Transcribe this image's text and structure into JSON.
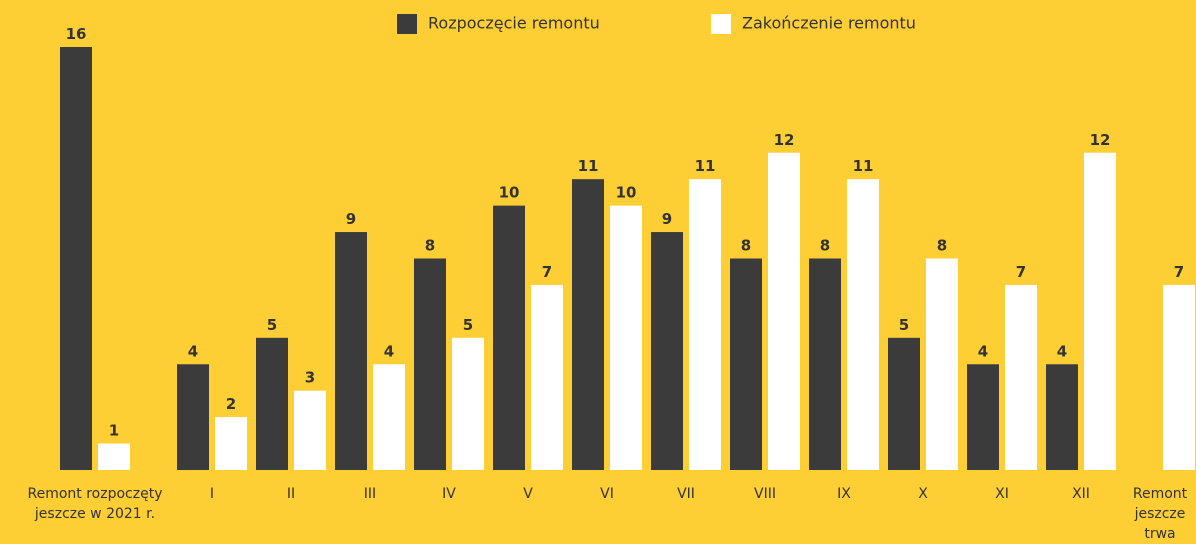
{
  "chart_data": {
    "type": "bar",
    "categories": [
      "Remont rozpoczęty jeszcze w 2021 r.",
      "I",
      "II",
      "III",
      "IV",
      "V",
      "VI",
      "VII",
      "VIII",
      "IX",
      "X",
      "XI",
      "XII",
      "Remont jeszcze trwa"
    ],
    "series": [
      {
        "name": "Rozpoczęcie remontu",
        "color": "#3b3b3b",
        "values": [
          16,
          4,
          5,
          9,
          8,
          10,
          11,
          9,
          8,
          8,
          5,
          4,
          4,
          null
        ]
      },
      {
        "name": "Zakończenie remontu",
        "color": "#ffffff",
        "values": [
          1,
          2,
          3,
          4,
          5,
          7,
          10,
          11,
          12,
          11,
          8,
          7,
          12,
          7
        ]
      }
    ]
  }
}
